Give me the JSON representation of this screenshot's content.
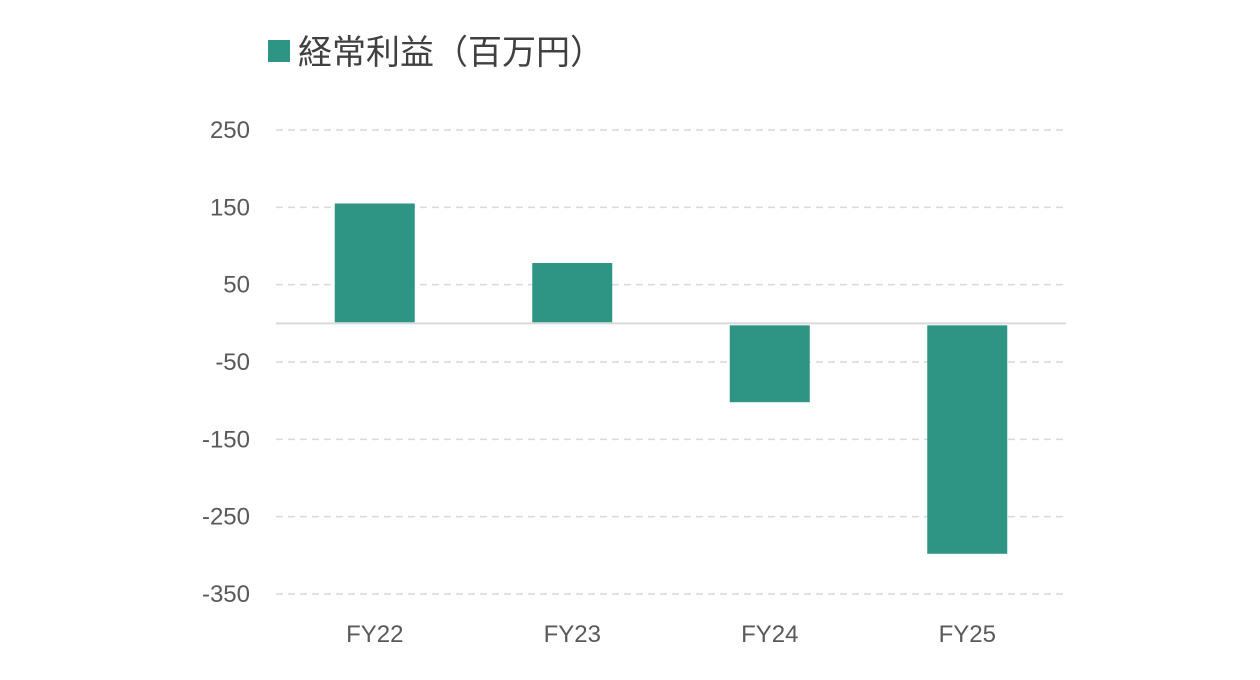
{
  "chart_data": {
    "type": "bar",
    "categories": [
      "FY22",
      "FY23",
      "FY24",
      "FY25"
    ],
    "series": [
      {
        "name": "経常利益（百万円）",
        "values": [
          155,
          78,
          -102,
          -298
        ],
        "color": "#2e9484"
      }
    ],
    "title": "",
    "xlabel": "",
    "ylabel": "",
    "ylim": [
      -350,
      250
    ],
    "yticks": [
      250,
      150,
      50,
      -50,
      -150,
      -250,
      -350
    ],
    "grid": true,
    "grid_style": "dashed",
    "legend_position": "top-left"
  }
}
